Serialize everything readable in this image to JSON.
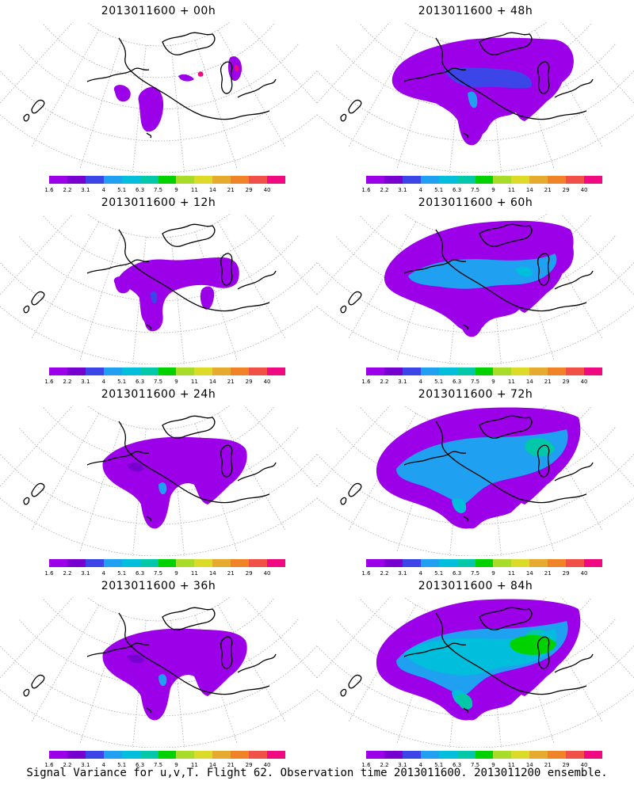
{
  "footer": "Signal Variance for u,v,T. Flight 62. Observation time 2013011600. 2013011200 ensemble.",
  "colorbar": {
    "colors": [
      "#9b00e8",
      "#7700d0",
      "#3c46e8",
      "#1fa0f0",
      "#00bedc",
      "#00c8a8",
      "#00d200",
      "#a8dc28",
      "#dcdc28",
      "#e6aa2e",
      "#f08228",
      "#f05046",
      "#f00a82"
    ],
    "labels": [
      "1.6",
      "2.2",
      "3.1",
      "4",
      "5.1",
      "6.3",
      "7.5",
      "9",
      "11",
      "14",
      "21",
      "29",
      "40"
    ]
  },
  "panels": [
    {
      "title": "2013011600 + 00h",
      "col": 0,
      "row": 0,
      "level": 0
    },
    {
      "title": "2013011600 + 48h",
      "col": 1,
      "row": 0,
      "level": 3
    },
    {
      "title": "2013011600 + 12h",
      "col": 0,
      "row": 1,
      "level": 1
    },
    {
      "title": "2013011600 + 60h",
      "col": 1,
      "row": 1,
      "level": 4
    },
    {
      "title": "2013011600 + 24h",
      "col": 0,
      "row": 2,
      "level": 2
    },
    {
      "title": "2013011600 + 72h",
      "col": 1,
      "row": 2,
      "level": 5
    },
    {
      "title": "2013011600 + 36h",
      "col": 0,
      "row": 3,
      "level": 2
    },
    {
      "title": "2013011600 + 84h",
      "col": 1,
      "row": 3,
      "level": 6
    }
  ]
}
